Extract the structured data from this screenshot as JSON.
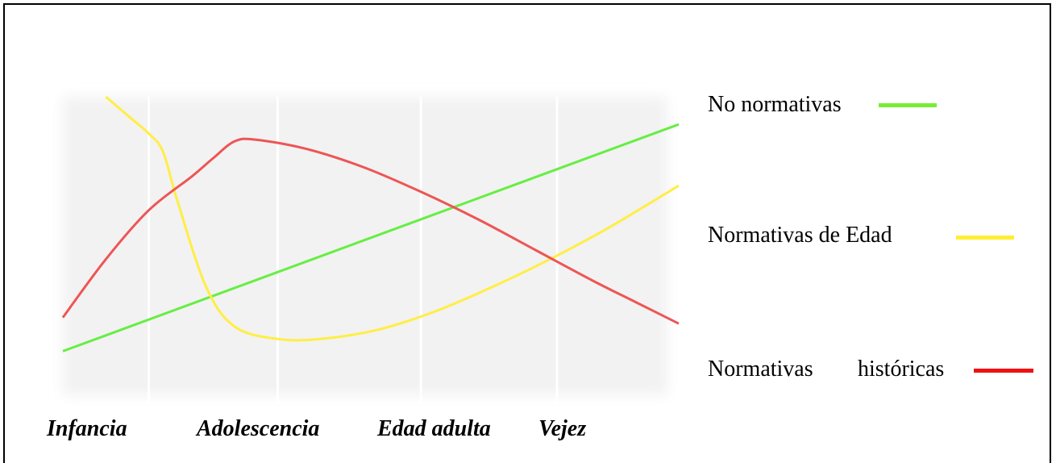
{
  "chart_data": {
    "type": "line",
    "title": "",
    "xlabel": "",
    "ylabel": "",
    "grid": true,
    "categories": [
      "Infancia",
      "Adolescencia",
      "Edad adulta",
      "Vejez"
    ],
    "xlim": [
      0,
      4.3
    ],
    "ylim": [
      0,
      10
    ],
    "legend_position": "right",
    "series": [
      {
        "name": "No normativas",
        "color": "#66ee44",
        "x": [
          0,
          4.3
        ],
        "y": [
          1.7,
          9.1
        ]
      },
      {
        "name": "Normativas de Edad",
        "color": "#ffee44",
        "x": [
          0.3,
          0.45,
          0.6,
          0.7,
          0.8,
          1.0,
          1.2,
          1.5,
          1.8,
          2.2,
          2.6,
          3.0,
          3.4,
          3.8,
          4.3
        ],
        "y": [
          10.0,
          9.4,
          8.8,
          8.2,
          6.6,
          3.8,
          2.5,
          2.1,
          2.1,
          2.4,
          3.0,
          3.8,
          4.7,
          5.7,
          7.1
        ]
      },
      {
        "name": "Normativas históricas",
        "color": "#ee5555",
        "x": [
          0,
          0.3,
          0.6,
          0.9,
          1.05,
          1.2,
          1.35,
          1.7,
          2.1,
          2.5,
          2.9,
          3.3,
          3.7,
          4.0,
          4.3
        ],
        "y": [
          2.8,
          4.7,
          6.3,
          7.4,
          8.0,
          8.55,
          8.6,
          8.3,
          7.7,
          6.9,
          6.0,
          5.0,
          4.0,
          3.3,
          2.6
        ]
      }
    ],
    "legend": {
      "no_normativas": "No normativas",
      "normativas_edad": "Normativas de Edad",
      "normativas_hist_a": "Normativas",
      "normativas_hist_b": "históricas"
    },
    "legend_colors": {
      "no_normativas": "#77ee33",
      "normativas_edad": "#ffee33",
      "normativas_hist": "#ee1111"
    }
  }
}
